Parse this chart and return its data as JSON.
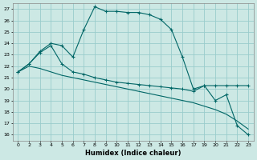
{
  "xlabel": "Humidex (Indice chaleur)",
  "bg_color": "#cce8e4",
  "grid_color": "#99cccc",
  "line_color": "#006666",
  "x_labels": [
    "0",
    "2",
    "3",
    "4",
    "5",
    "6",
    "7",
    "8",
    "9",
    "10",
    "11",
    "12",
    "13",
    "14",
    "15",
    "16",
    "17",
    "19",
    "20",
    "21",
    "22",
    "23"
  ],
  "ylim": [
    15.5,
    27.5
  ],
  "yticks": [
    16,
    17,
    18,
    19,
    20,
    21,
    22,
    23,
    24,
    25,
    26,
    27
  ],
  "series1_y": [
    21.5,
    22.2,
    23.3,
    24.0,
    23.8,
    22.8,
    25.2,
    27.2,
    26.8,
    26.8,
    26.7,
    26.7,
    26.5,
    26.1,
    25.2,
    22.8,
    20.0,
    20.3,
    19.0,
    19.5,
    16.8,
    16.0
  ],
  "series2_y": [
    21.5,
    22.2,
    23.2,
    23.8,
    22.2,
    21.5,
    21.3,
    21.0,
    20.8,
    20.6,
    20.5,
    20.4,
    20.3,
    20.2,
    20.1,
    20.0,
    19.8,
    20.3,
    20.3,
    20.3,
    20.3,
    20.3
  ],
  "series3_y": [
    21.5,
    22.0,
    21.8,
    21.5,
    21.2,
    21.0,
    20.8,
    20.6,
    20.4,
    20.2,
    20.0,
    19.8,
    19.6,
    19.4,
    19.2,
    19.0,
    18.8,
    18.5,
    18.2,
    17.8,
    17.2,
    16.5
  ]
}
